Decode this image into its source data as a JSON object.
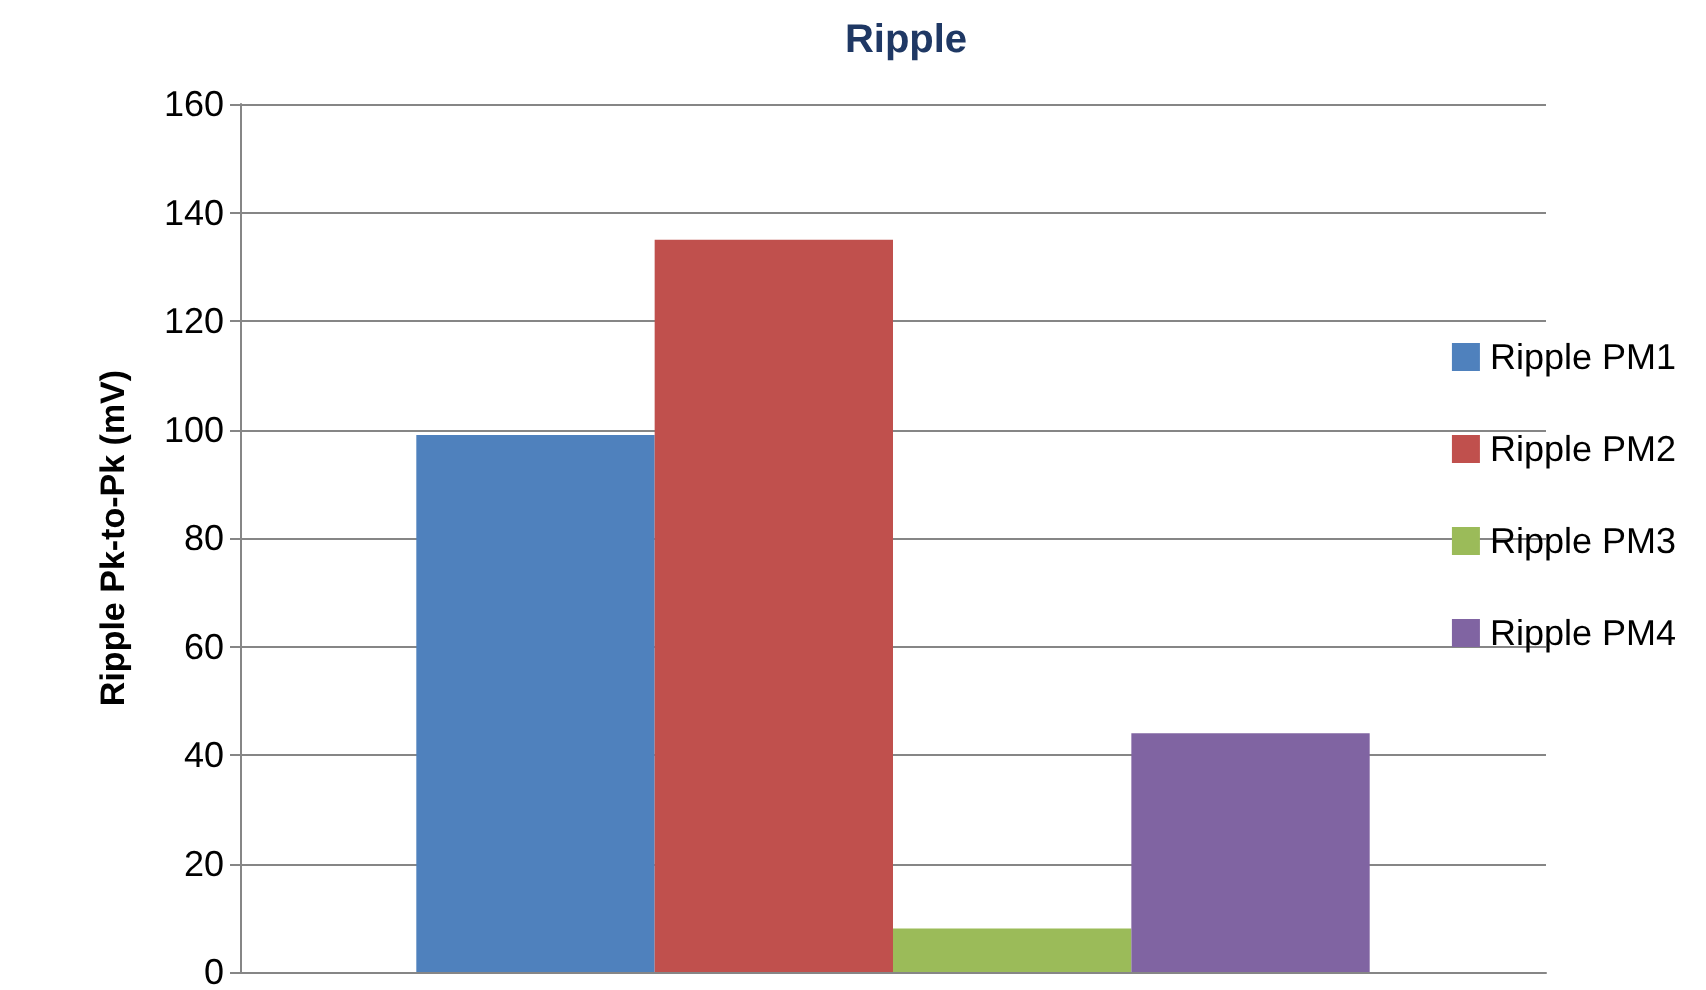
{
  "chart_data": {
    "type": "bar",
    "title": "Ripple",
    "ylabel": "Ripple Pk-to-Pk (mV)",
    "categories": [
      null
    ],
    "series": [
      {
        "name": "Ripple PM1",
        "color": "#4f81bd",
        "values": [
          99
        ]
      },
      {
        "name": "Ripple PM2",
        "color": "#c0504d",
        "values": [
          135
        ]
      },
      {
        "name": "Ripple PM3",
        "color": "#9bbb59",
        "values": [
          8
        ]
      },
      {
        "name": "Ripple PM4",
        "color": "#8064a2",
        "values": [
          44
        ]
      }
    ],
    "ylim": [
      0,
      160
    ],
    "yticks": [
      0,
      20,
      40,
      60,
      80,
      100,
      120,
      140,
      160
    ],
    "grid": "y",
    "legend": "right"
  }
}
